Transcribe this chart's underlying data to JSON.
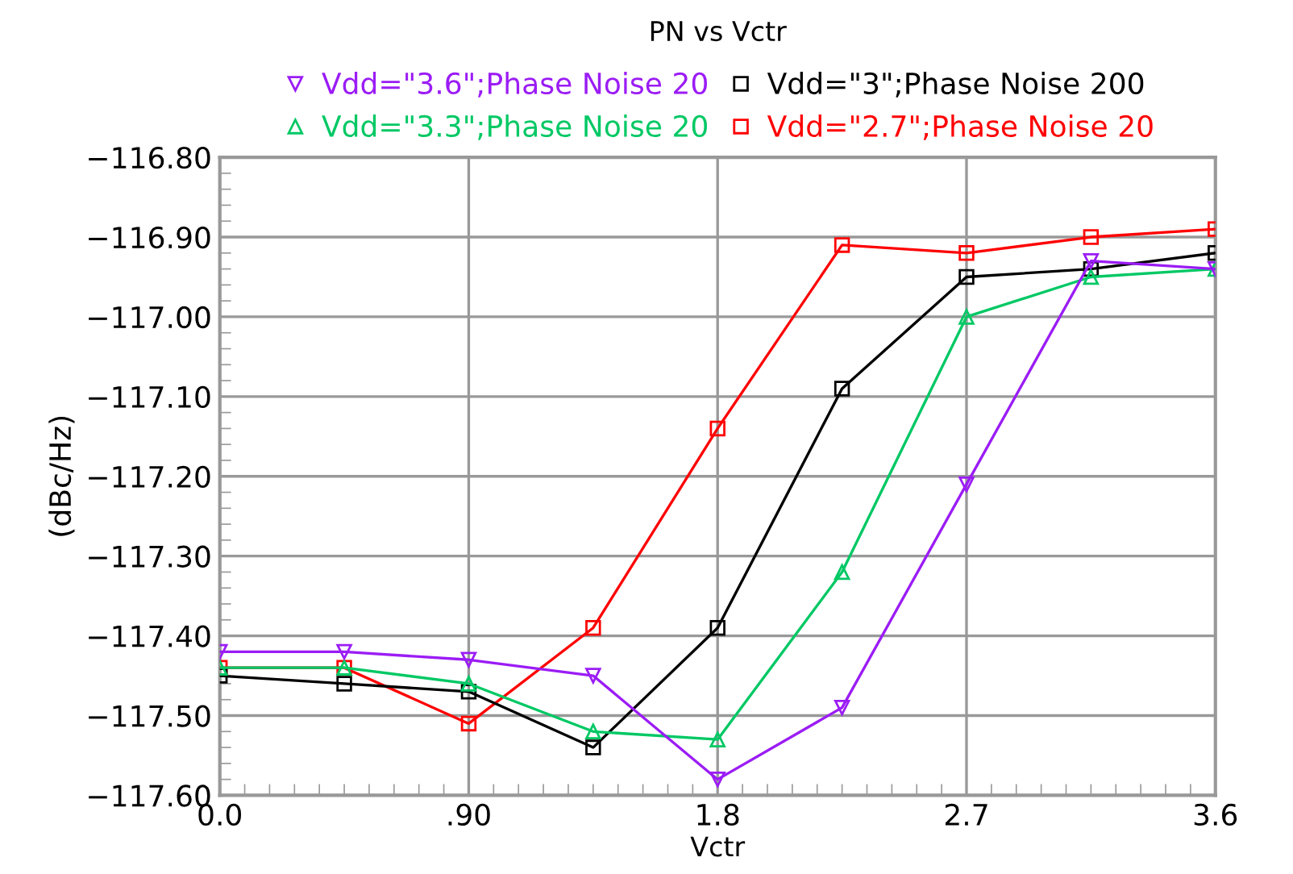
{
  "chart_data": {
    "type": "line",
    "title": "PN vs Vctr",
    "xlabel": "Vctr",
    "ylabel": "(dBc/Hz)",
    "x": [
      0,
      0.45,
      0.9,
      1.35,
      1.8,
      2.25,
      2.7,
      3.15,
      3.6
    ],
    "series": [
      {
        "name": "Vdd=\"3.6\";Phase Noise 20",
        "color": "#9b1cf5",
        "marker": "triangle_down",
        "values": [
          -117.42,
          -117.42,
          -117.43,
          -117.45,
          -117.58,
          -117.49,
          -117.21,
          -116.93,
          -116.94
        ]
      },
      {
        "name": "Vdd=\"3.3\";Phase Noise 20",
        "color": "#00c864",
        "marker": "triangle",
        "values": [
          -117.44,
          -117.44,
          -117.46,
          -117.52,
          -117.53,
          -117.32,
          -117.0,
          -116.95,
          -116.94
        ]
      },
      {
        "name": "Vdd=\"3\";Phase Noise 200",
        "color": "#000000",
        "marker": "square",
        "values": [
          -117.45,
          -117.46,
          -117.47,
          -117.54,
          -117.39,
          -117.09,
          -116.95,
          -116.94,
          -116.92
        ]
      },
      {
        "name": "Vdd=\"2.7\";Phase Noise 20",
        "color": "#ff0000",
        "marker": "square",
        "values": [
          -117.44,
          -117.44,
          -117.51,
          -117.39,
          -117.14,
          -116.91,
          -116.92,
          -116.9,
          -116.89
        ]
      }
    ],
    "xlim": [
      0,
      3.6
    ],
    "xticks": [
      {
        "value": 0,
        "label": "0.0"
      },
      {
        "value": 0.9,
        "label": ".90"
      },
      1.8,
      2.7,
      3.6
    ],
    "ylim": [
      -117.6,
      -116.8
    ],
    "yticks": [
      {
        "value": -117.6,
        "label": "−117.60"
      },
      {
        "value": -117.5,
        "label": "−117.50"
      },
      {
        "value": -117.4,
        "label": "−117.40"
      },
      {
        "value": -117.3,
        "label": "−117.30"
      },
      {
        "value": -117.2,
        "label": "−117.20"
      },
      {
        "value": -117.1,
        "label": "−117.10"
      },
      {
        "value": -117.0,
        "label": "−117.00"
      },
      {
        "value": -116.9,
        "label": "−116.90"
      },
      {
        "value": -116.8,
        "label": "−116.80"
      }
    ],
    "grid": true,
    "legend": "top",
    "line_style": "solid"
  }
}
